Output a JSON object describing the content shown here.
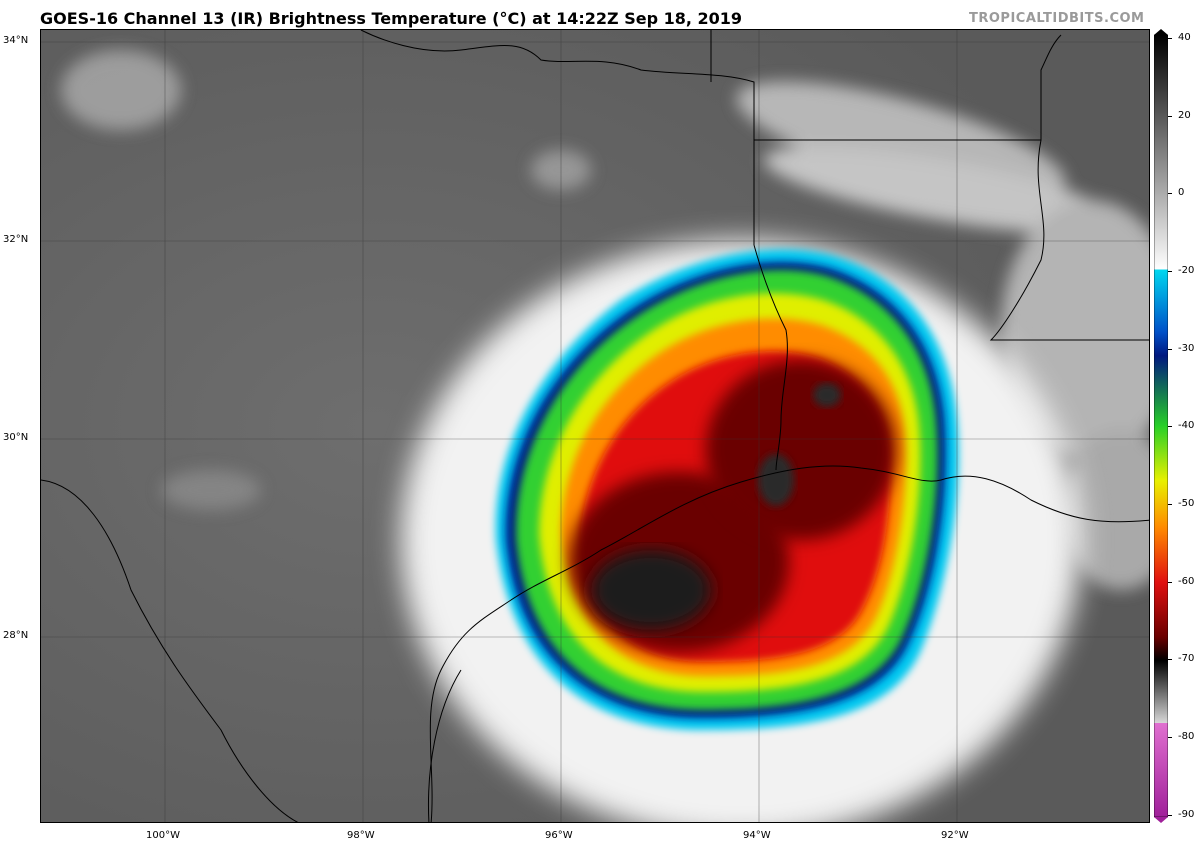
{
  "header": {
    "title": "GOES-16 Channel 13 (IR) Brightness Temperature (°C) at 14:22Z Sep 18, 2019",
    "credit": "TROPICALTIDBITS.COM"
  },
  "map": {
    "lat_labels": [
      "34°N",
      "32°N",
      "30°N",
      "28°N"
    ],
    "lon_labels": [
      "100°W",
      "98°W",
      "96°W",
      "94°W",
      "92°W"
    ]
  },
  "colorbar": {
    "tick_labels": [
      "40",
      "20",
      "0",
      "-20",
      "-30",
      "-40",
      "-50",
      "-60",
      "-70",
      "-80",
      "-90"
    ],
    "colors": {
      "magenta": "#a0209a",
      "pink": "#e070d0",
      "light_gray": "#d8d8d8",
      "black": "#000000",
      "dark_red": "#6a0000",
      "red": "#e01010",
      "orange": "#ff8a00",
      "yellow": "#e8f000",
      "green": "#28d028",
      "navy": "#001880",
      "cyan": "#00d8f0",
      "white": "#ffffff",
      "dark_gray": "#202020"
    }
  }
}
